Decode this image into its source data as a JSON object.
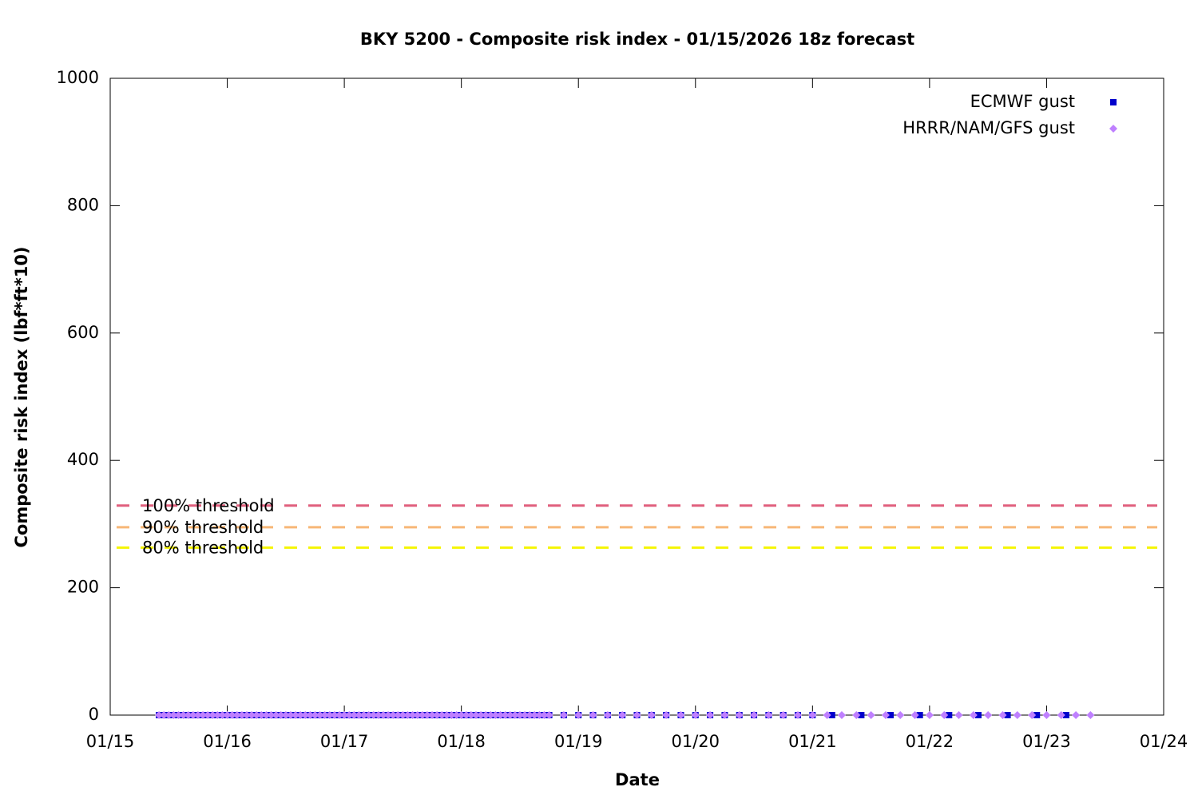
{
  "chart_data": {
    "type": "scatter",
    "title": "BKY 5200 - Composite risk index - 01/15/2026 18z forecast",
    "x_label": "Date",
    "y_label": "Composite risk index (lbf*ft*10)",
    "xlim": [
      0,
      216
    ],
    "xticks": [
      {
        "value": 0,
        "label": "01/15"
      },
      {
        "value": 24,
        "label": "01/16"
      },
      {
        "value": 48,
        "label": "01/17"
      },
      {
        "value": 72,
        "label": "01/18"
      },
      {
        "value": 96,
        "label": "01/19"
      },
      {
        "value": 120,
        "label": "01/20"
      },
      {
        "value": 144,
        "label": "01/21"
      },
      {
        "value": 168,
        "label": "01/22"
      },
      {
        "value": 192,
        "label": "01/23"
      },
      {
        "value": 216,
        "label": "01/24"
      }
    ],
    "ylim": [
      0,
      1000
    ],
    "yticks": [
      0,
      200,
      400,
      600,
      800,
      1000
    ],
    "legend": "top-right",
    "thresholds": [
      {
        "label": "100% threshold",
        "value": 329,
        "color": "#e0607e"
      },
      {
        "label": "90% threshold",
        "value": 295,
        "color": "#f7b778"
      },
      {
        "label": "80% threshold",
        "value": 263,
        "color": "#f5f500"
      }
    ],
    "series": [
      {
        "name": "ECMWF gust",
        "color": "#0000cc",
        "marker": "square",
        "x": [
          10,
          11,
          12,
          13,
          14,
          15,
          16,
          17,
          18,
          19,
          20,
          21,
          22,
          23,
          24,
          25,
          26,
          27,
          28,
          29,
          30,
          31,
          32,
          33,
          34,
          35,
          36,
          37,
          38,
          39,
          40,
          41,
          42,
          43,
          44,
          45,
          46,
          47,
          48,
          49,
          50,
          51,
          52,
          53,
          54,
          55,
          56,
          57,
          58,
          59,
          60,
          61,
          62,
          63,
          64,
          65,
          66,
          67,
          68,
          69,
          70,
          71,
          72,
          73,
          74,
          75,
          76,
          77,
          78,
          79,
          80,
          81,
          82,
          83,
          84,
          85,
          86,
          87,
          88,
          89,
          90,
          93,
          96,
          99,
          102,
          105,
          108,
          111,
          114,
          117,
          120,
          123,
          126,
          129,
          132,
          135,
          138,
          141,
          144,
          148,
          154,
          160,
          166,
          172,
          178,
          184,
          190,
          196
        ],
        "values": [
          0,
          0,
          0,
          0,
          0,
          0,
          0,
          0,
          0,
          0,
          0,
          0,
          0,
          0,
          0,
          0,
          0,
          0,
          0,
          0,
          0,
          0,
          0,
          0,
          0,
          0,
          0,
          0,
          0,
          0,
          0,
          0,
          0,
          0,
          0,
          0,
          0,
          0,
          0,
          0,
          0,
          0,
          0,
          0,
          0,
          0,
          0,
          0,
          0,
          0,
          0,
          0,
          0,
          0,
          0,
          0,
          0,
          0,
          0,
          0,
          0,
          0,
          0,
          0,
          0,
          0,
          0,
          0,
          0,
          0,
          0,
          0,
          0,
          0,
          0,
          0,
          0,
          0,
          0,
          0,
          0,
          0,
          0,
          0,
          0,
          0,
          0,
          0,
          0,
          0,
          0,
          0,
          0,
          0,
          0,
          0,
          0,
          0,
          0,
          0,
          0,
          0,
          0,
          0,
          0,
          0,
          0,
          0
        ]
      },
      {
        "name": "HRRR/NAM/GFS gust",
        "color": "#bf80ff",
        "marker": "diamond",
        "x": [
          10,
          11,
          12,
          13,
          14,
          15,
          16,
          17,
          18,
          19,
          20,
          21,
          22,
          23,
          24,
          25,
          26,
          27,
          28,
          29,
          30,
          31,
          32,
          33,
          34,
          35,
          36,
          37,
          38,
          39,
          40,
          41,
          42,
          43,
          44,
          45,
          46,
          47,
          48,
          49,
          50,
          51,
          52,
          53,
          54,
          55,
          56,
          57,
          58,
          59,
          60,
          61,
          62,
          63,
          64,
          65,
          66,
          67,
          68,
          69,
          70,
          71,
          72,
          73,
          74,
          75,
          76,
          77,
          78,
          79,
          80,
          81,
          82,
          83,
          84,
          85,
          86,
          87,
          88,
          89,
          90,
          93,
          96,
          99,
          102,
          105,
          108,
          111,
          114,
          117,
          120,
          123,
          126,
          129,
          132,
          135,
          138,
          141,
          144,
          147,
          150,
          153,
          156,
          159,
          162,
          165,
          168,
          171,
          174,
          177,
          180,
          183,
          186,
          189,
          192,
          195,
          198,
          201
        ],
        "values": [
          0,
          0,
          0,
          0,
          0,
          0,
          0,
          0,
          0,
          0,
          0,
          0,
          0,
          0,
          0,
          0,
          0,
          0,
          0,
          0,
          0,
          0,
          0,
          0,
          0,
          0,
          0,
          0,
          0,
          0,
          0,
          0,
          0,
          0,
          0,
          0,
          0,
          0,
          0,
          0,
          0,
          0,
          0,
          0,
          0,
          0,
          0,
          0,
          0,
          0,
          0,
          0,
          0,
          0,
          0,
          0,
          0,
          0,
          0,
          0,
          0,
          0,
          0,
          0,
          0,
          0,
          0,
          0,
          0,
          0,
          0,
          0,
          0,
          0,
          0,
          0,
          0,
          0,
          0,
          0,
          0,
          0,
          0,
          0,
          0,
          0,
          0,
          0,
          0,
          0,
          0,
          0,
          0,
          0,
          0,
          0,
          0,
          0,
          0,
          0,
          0,
          0,
          0,
          0,
          0,
          0,
          0,
          0,
          0,
          0,
          0,
          0,
          0,
          0,
          0,
          0,
          0,
          0
        ]
      }
    ]
  }
}
